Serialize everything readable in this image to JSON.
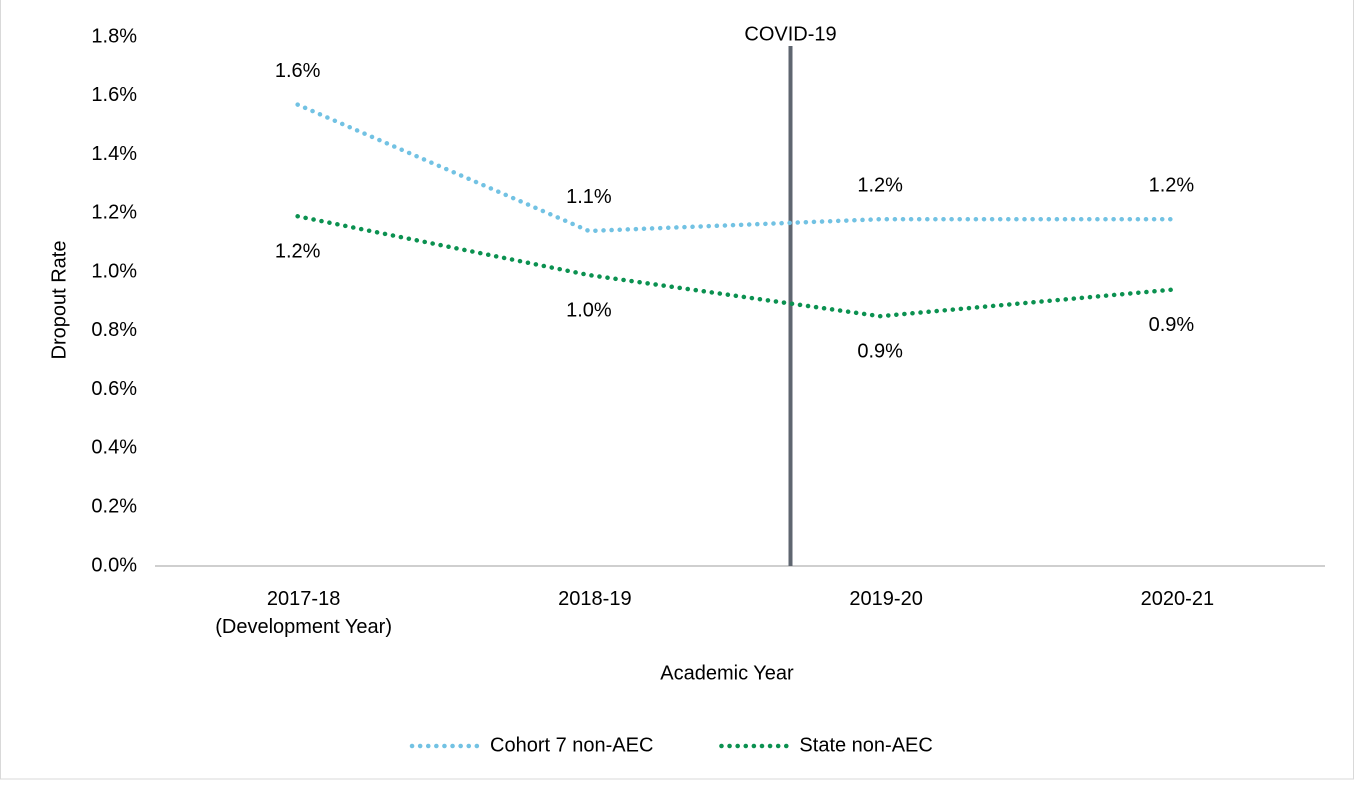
{
  "chart_data": {
    "type": "line",
    "x_label": "Academic Year",
    "y_label": "Dropout Rate",
    "categories": [
      [
        "2017-18",
        "(Development Year)"
      ],
      [
        "2018-19"
      ],
      [
        "2019-20"
      ],
      [
        "2020-21"
      ]
    ],
    "series": [
      {
        "name": "Cohort 7 non-AEC",
        "color": "#72c2e3",
        "values": [
          1.57,
          1.14,
          1.18,
          1.18
        ],
        "value_labels": [
          "1.6%",
          "1.1%",
          "1.2%",
          "1.2%"
        ]
      },
      {
        "name": "State non-AEC",
        "color": "#0b9150",
        "values": [
          1.19,
          0.99,
          0.85,
          0.94
        ],
        "value_labels": [
          "1.2%",
          "1.0%",
          "0.9%",
          "0.9%"
        ]
      }
    ],
    "ylim": [
      0,
      1.8
    ],
    "yticks": [
      {
        "value": 0,
        "label": "0.0%"
      },
      {
        "value": 0.2,
        "label": "0.2%"
      },
      {
        "value": 0.4,
        "label": "0.4%"
      },
      {
        "value": 0.6,
        "label": "0.6%"
      },
      {
        "value": 0.8,
        "label": "0.8%"
      },
      {
        "value": 1.0,
        "label": "1.0%"
      },
      {
        "value": 1.2,
        "label": "1.2%"
      },
      {
        "value": 1.4,
        "label": "1.4%"
      },
      {
        "value": 1.6,
        "label": "1.6%"
      },
      {
        "value": 1.8,
        "label": "1.8%"
      }
    ],
    "grid": false,
    "legend": "bottom",
    "annotations": [
      {
        "text": "COVID-19"
      }
    ]
  }
}
